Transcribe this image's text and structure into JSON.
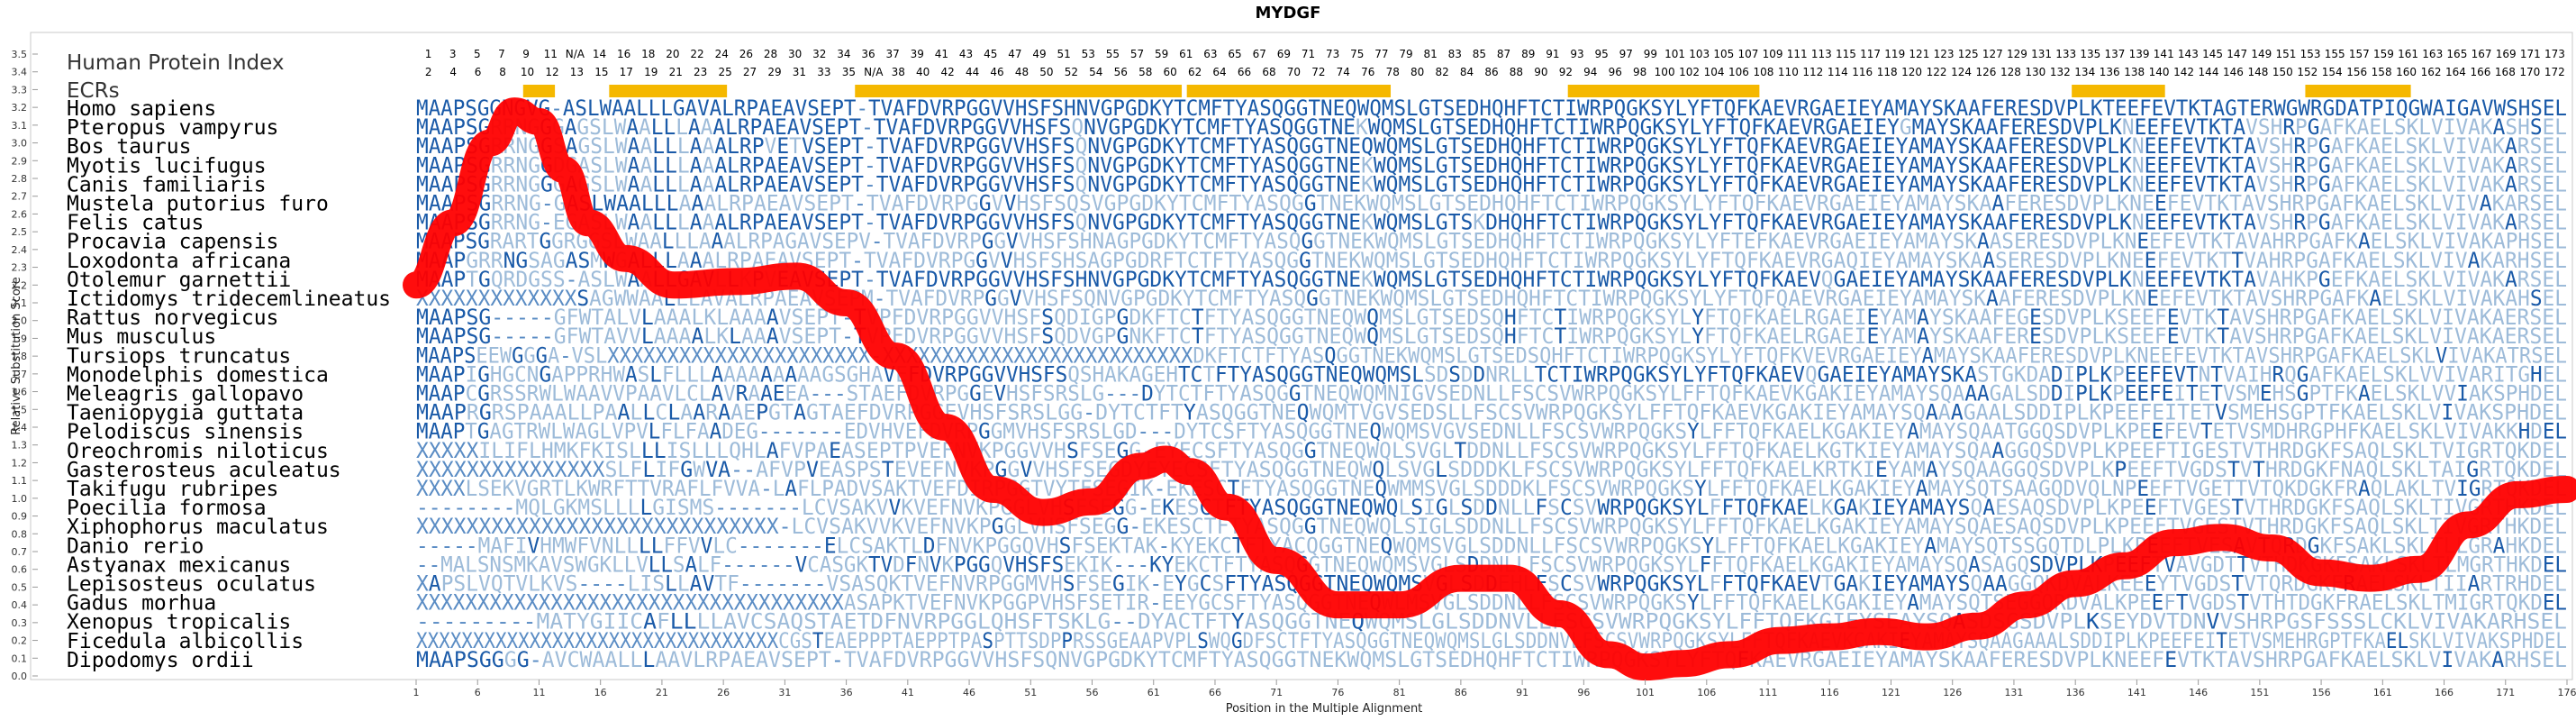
{
  "chart_data": {
    "type": "line",
    "title": "MYDGF",
    "xlabel": "Position in the Multiple Alignment",
    "ylabel": "Relative Substitution Score",
    "ylim": [
      0.0,
      3.5
    ],
    "yticks": [
      "0.0",
      "0.1",
      "0.2",
      "0.3",
      "0.4",
      "0.5",
      "0.6",
      "0.7",
      "0.8",
      "0.9",
      "1.0",
      "1.1",
      "1.2",
      "1.3",
      "1.4",
      "1.5",
      "1.6",
      "1.7",
      "1.8",
      "1.9",
      "2.0",
      "2.1",
      "2.2",
      "2.3",
      "2.4",
      "2.5",
      "2.6",
      "2.7",
      "2.8",
      "2.9",
      "3.0",
      "3.1",
      "3.2",
      "3.3",
      "3.4",
      "3.5"
    ],
    "xlim": [
      1,
      176
    ],
    "xticks": [
      "1",
      "6",
      "11",
      "16",
      "21",
      "26",
      "31",
      "36",
      "41",
      "46",
      "51",
      "56",
      "61",
      "66",
      "71",
      "76",
      "81",
      "86",
      "91",
      "96",
      "101",
      "106",
      "111",
      "116",
      "121",
      "126",
      "131",
      "136",
      "141",
      "146",
      "151",
      "156",
      "161",
      "166",
      "171",
      "176"
    ],
    "human_protein_index_label": "Human Protein Index",
    "ecrs_label": "ECRs",
    "protein_index_row1": [
      "1",
      "3",
      "5",
      "7",
      "9",
      "11",
      "N/A",
      "14",
      "16",
      "18",
      "20",
      "22",
      "24",
      "26",
      "28",
      "30",
      "32",
      "34",
      "36",
      "37",
      "39",
      "41",
      "43",
      "45",
      "47",
      "49",
      "51",
      "53",
      "55",
      "57",
      "59",
      "61",
      "63",
      "65",
      "67",
      "69",
      "71",
      "73",
      "75",
      "77",
      "79",
      "81",
      "83",
      "85",
      "87",
      "89",
      "91",
      "93",
      "95",
      "97",
      "99",
      "101",
      "103",
      "105",
      "107",
      "109",
      "111",
      "113",
      "115",
      "117",
      "119",
      "121",
      "123",
      "125",
      "127",
      "129",
      "131",
      "133",
      "135",
      "137",
      "139",
      "141",
      "143",
      "145",
      "147",
      "149",
      "151",
      "153",
      "155",
      "157",
      "159",
      "161",
      "163",
      "165",
      "167",
      "169",
      "171",
      "173"
    ],
    "protein_index_row2": [
      "2",
      "4",
      "6",
      "8",
      "10",
      "12",
      "13",
      "15",
      "17",
      "19",
      "21",
      "23",
      "25",
      "27",
      "29",
      "31",
      "33",
      "35",
      "N/A",
      "38",
      "40",
      "42",
      "44",
      "46",
      "48",
      "50",
      "52",
      "54",
      "56",
      "58",
      "60",
      "62",
      "64",
      "66",
      "68",
      "70",
      "72",
      "74",
      "76",
      "78",
      "80",
      "82",
      "84",
      "86",
      "88",
      "90",
      "92",
      "94",
      "96",
      "98",
      "100",
      "102",
      "104",
      "106",
      "108",
      "110",
      "112",
      "114",
      "116",
      "118",
      "120",
      "122",
      "124",
      "126",
      "128",
      "130",
      "132",
      "134",
      "136",
      "138",
      "140",
      "142",
      "144",
      "146",
      "148",
      "150",
      "152",
      "154",
      "156",
      "158",
      "160",
      "162",
      "164",
      "166",
      "168",
      "170",
      "172"
    ],
    "ecr_regions": [
      [
        10,
        12
      ],
      [
        17,
        26
      ],
      [
        37,
        63
      ],
      [
        64,
        80
      ],
      [
        95,
        110
      ],
      [
        136,
        143
      ],
      [
        155,
        163
      ]
    ],
    "series": [
      {
        "points": [
          [
            1,
            2.2
          ],
          [
            4,
            2.55
          ],
          [
            7,
            3.0
          ],
          [
            9,
            3.18
          ],
          [
            11,
            3.12
          ],
          [
            13,
            2.85
          ],
          [
            15,
            2.55
          ],
          [
            18,
            2.35
          ],
          [
            22,
            2.2
          ],
          [
            27,
            2.22
          ],
          [
            32,
            2.25
          ],
          [
            36,
            2.1
          ],
          [
            40,
            1.8
          ],
          [
            44,
            1.4
          ],
          [
            48,
            1.05
          ],
          [
            52,
            0.92
          ],
          [
            56,
            0.98
          ],
          [
            60,
            1.18
          ],
          [
            62,
            1.22
          ],
          [
            64,
            1.15
          ],
          [
            67,
            0.95
          ],
          [
            71,
            0.65
          ],
          [
            76,
            0.4
          ],
          [
            81,
            0.4
          ],
          [
            86,
            0.55
          ],
          [
            90,
            0.55
          ],
          [
            94,
            0.35
          ],
          [
            98,
            0.12
          ],
          [
            101,
            0.05
          ],
          [
            104,
            0.07
          ],
          [
            108,
            0.12
          ],
          [
            112,
            0.2
          ],
          [
            116,
            0.22
          ],
          [
            120,
            0.25
          ],
          [
            124,
            0.22
          ],
          [
            128,
            0.28
          ],
          [
            132,
            0.4
          ],
          [
            136,
            0.52
          ],
          [
            140,
            0.62
          ],
          [
            144,
            0.75
          ],
          [
            148,
            0.78
          ],
          [
            152,
            0.72
          ],
          [
            156,
            0.58
          ],
          [
            160,
            0.55
          ],
          [
            164,
            0.6
          ],
          [
            168,
            0.85
          ],
          [
            172,
            1.02
          ],
          [
            176,
            1.05
          ]
        ]
      }
    ],
    "color_line": "#ff0000",
    "color_ecr": "#f5b800",
    "color_seq_conserved": "#1a5aa8",
    "color_seq_mid": "#5a8cc4",
    "color_seq_low": "#9dbbd9",
    "alignment": [
      {
        "species": "Homo sapiens",
        "seq": "MAAPSGGNGVG-ASLWAALLLGAVALRPAEAVSEPT-TVAFDVRPGGVVHSFSHNVGPGDKYTCMFTYASQGGTNEQWQMSLGTSEDHQHFTCTIWRPQGKSYLYFTQFKAEVRGAEIEYAMAYSKAAFERESDVPLKTEEFEVTKTAGTERWGWRGDATPIQGWAIGAVWSHSEL"
      },
      {
        "species": "Pteropus vampyrus",
        "seq": "MAAPSGRRNGGGAGSLWAALLLAAALRPAEAVSEPT-TVAFDVRPGGVVHSFSQNVGPGDKYTCMFTYASQGGTNEKWQMSLGTSEDHQHFTCTIWRPQGKSYLYFTQFKAEVRGAEIEYGMAYSKAAFERESDVPLKNEEFEVTKTAVSHRPGAFKAELSKLVIVAKASHSEL"
      },
      {
        "species": "Bos taurus",
        "seq": "MAAPSGRRNGGSAGSLWAALLLAAALRPVETVSEPT-TVAFDVRPGGVVHSFSQNVGPGDKYTCMFTYASQGGTNEQWQMSLGTSEDHQHFTCTIWRPQGKSYLYFTQFKAEVRGAEIEYAMAYSKAAFERESDVPLKNEEFEVTKTAVSHRPGAFKAELSKLVIVAKARSEL"
      },
      {
        "species": "Myotis lucifugus",
        "seq": "MAAPSGRRNGGDGASLWAALLLAAALRPAEAVSEPT-TVAFDVRPGGVVHSFSQNVGPGDKYTCMFTYASQGGTNEKWQMSLGTSEDHQHFTCTIWRPQGKSYLYFTQFKAEVRGAEIEYAMAYSKAAFERESDVPLKNEEFEVTKTAVSHRPGAFKAELSKLVIVAKARSEL"
      },
      {
        "species": "Canis familiaris",
        "seq": "MAAPSGRRNGGGAGSLWAALLLAAALRPAEAVSEPT-TVAFDVRPGGVVHSFSQNVGPGDKYTCMFTYASQGGTNEKWQMSLGTSEDHQHFTCTIWRPQGKSYLYFTQFKAEVRGAEIEYAMAYSKAAFERESDVPLKNEEFEVTKTAVSHRPGAFKAELSKLVIVAKARSEL"
      },
      {
        "species": "Mustela putorius furo",
        "seq": "MAAPSGRRNG-GASLWAALLLAAALRPAEAVSEPT-TVAFDVRPGGVVHSFSQSVGPGDKYTCMFTYASQGGTNEKWQMSLGTSEDHQHFTCTIWRPQGKSYLYFTQFKAEVRGAEIEYAMAYSKAAFERESDVPLKNEEFEVTKTAVSHRPGAFKAELSKLVIVAKARSEL"
      },
      {
        "species": "Felis catus",
        "seq": "MAAPSGRRNG-EGASLWAALLLAAALRPAEAVSEPT-TVAFDVRPGGVVHSFSQNVGPGDKYTCMFTYASQGGTNEKWQMSLGTSKDHQHFTCTIWRPQGKSYLYFTQFKAEVRGAEIEYAMAYSKAAFERESDVPLKNEEFEVTKTAVSHRPGAFKAELSKLVIVAKARSEL"
      },
      {
        "species": "Procavia capensis",
        "seq": "MAAPSGRARTGGRGGSLWAALLLAAALRPAGAVSEPV-TVAFDVRPGGVVHSFSHNAGPGDKYTCMFTYASQGGTNEKWQMSLGTSEDHQHFTCTIWRPQGKSYLYFTEFKAEVRGAEIEYAMAYSKAASERESDVPLKNEEFEVTKTAVAHRPGAFKAELSKLVIVAKAPHSEL"
      },
      {
        "species": "Loxodonta africana",
        "seq": "MAAPGRRNGSAGASMWGALLLAAALRPAEAVSEPT-TVAFDVRPGGVVHSFSHSAGPGDRFTCTFTYASQGGTNEKWQMSLGTSEDHQHFTCTIWRPQGKSYLYFTQFKAEVRGAQIEYAMAYSKAASERESDVPLKNEEFEVTKTTVAHRPGAFKAELSKLVIVAKARHSEL"
      },
      {
        "species": "Otolemur garnettii",
        "seq": "MAAPTGQRDGSS-ASLWAALLGAVLLKPVEAVSEPT-TVAFDVRPGGVVHSFSHNVGPGDKYTCMFTYASQGGTNEKWQMSLGTSEDHQHFTCTIWRPQGKSYLYFTQFKAEVQGAEIEYAMAYSKAAFERESDVPLKNEEFEVTKTAVAHKPGEFKAELSKLVIVAKARSEL"
      },
      {
        "species": "Ictidomys tridecemlineatus",
        "seq": "XXXXXXXXXXXXXSAGWWAALLLAVALRPAEAVSEPM-TVAFDVRPGGVVHSFSQNVGPGDKYTCMFTYASQGGTNEKWQMSLGTSEDHQHFTCTIWRPQGKSYLYFTQFQAEVRGAEIEYAMAYSKAAFERESDVPLKNEEFEVTKTAVSHRPGAFKAELSKLVIVAKAHSEL"
      },
      {
        "species": "Rattus norvegicus",
        "seq": "MAAPSG-----GFWTALVLAAALKLAAAAVSEPT-TVPFDVRPGGVVHSFSQDIGPGDKFTCTFTYASQGGTNEQWQMSLGTSEDSQHFTCTIWRPQGKSYLYFTQFKAELRGAEIEYAMAYSKAAFEGESDVPLKSEEFEVTKTAVSHRPGAFKAELSKLVIVAKAERSEL"
      },
      {
        "species": "Mus musculus",
        "seq": "MAAPSG-----GFWTAVVLAAAALKLAAAVSEPT-TVPFDVRPGGVVHSFSQDVGPGNKFTCTFTYASQGGTNEQWQMSLGTSEDSQHFTCTIWRPQGKSYLYFTQFKAELRGAEIEYAMAYSKAAFERESDVPLKSEEFEVTKTAVSHRPGAFKAELSKLVIVAKAERSEL"
      },
      {
        "species": "Tursiops truncatus",
        "seq": "MAAPSEEWGGGA-VSLXXXXXXXXXXXXXXXXXXXXXX-XXXXXXXXXXXXXXXXXXXXXXXXXXDKFTCTFTYASQGGTNEKWQMSLGTSEDSQHFTCTIWRPQGKSYLYFTQFKVEVRGAEIEYAMAYSKAAFERESDVPLKNEEFEVTKTAVSHRPGAFKAELSKLVIVAKATRSEL"
      },
      {
        "species": "Monodelphis domestica",
        "seq": "MAAPIGHGCNGAPPRHWASLFLLLAAAAAAAAAGSGHAVEFDVRPGGVVHSFSQSHAKAGEHTCTFTYASQGGTNEQWQMSLSDSDDNRLLTCTIWRPQGKSYLYFTQFKAEVQGAEIEYAMAYSKASTGKDADIPLKPEEFEVTNTVAIHRQGAFKAELSKLVVIVARITGHEL"
      },
      {
        "species": "Meleagris gallopavo",
        "seq": "MAAPCGRSSRWLWAAVVPAAVLCLAVRAAEEA---STAEFDVRPGGEVHSFSRSLG---DYTCTFTYASQGGTNEQWQMNIGVSEDNLLFSCSVWRPQGKSYLFFTQFKAEVKGAKIEYAMAYSQAAAGALSDDIPLKPEEFEITETVSMEHSGPTFKAELSKLVVIAKSPHDEL"
      },
      {
        "species": "Taeniopygia guttata",
        "seq": "MAAPRGRSPAAALLPAALLCLAARAAEPGTAGTAEFDVRPGGEVHSFSRSLGG-DYTCTFTYASQGGTNEQWQMTVGVSEDSLLFSCSVWRPQGKSYLFFTQFKAEVKGAKIEYAMAYSQAAAGAALSDDIPLKPEEFEITETVSMEHSGPTFKAELSKLVIVAKSPHDEL"
      },
      {
        "species": "Pelodiscus sinensis",
        "seq": "MAAPTGAGTRWLWAGLVPVLFLFAADEG-------EDVHVEFDVRPGGMVHSFSRSLGD---DYTCSFTYASQGGTNEQWQMSVGVSEDNLLFSCSVWRPQGKSYLFFTQFKAELKGAKIEYAMAYSQAATGGQSDVPLKPEEFEVTETVSMDHRGPHFKAELSKLVIVAKKHDEL"
      },
      {
        "species": "Oreochromis niloticus",
        "seq": "XXXXXILIFLHMKFKISLLLISLLLQHLAFVPAEASEPTPVEFNVKPGGVVHSFSEGG-EYECSFTYASQGGTNEQWQLSVGLTDDNLLFSCSVWRPQGKSYLFFTQFKAELKGTKIEYAMAYSQAAGGQSDVPLKPEEFTIGESTVTHRDGKFSAQLSKLTVIGRTQKDEL"
      },
      {
        "species": "Gasterosteus aculeatus",
        "seq": "XXXXXXXXXXXXXXXSLFLIFGWVA--AFVPVEASPSTEVEFNVKPGGVVHSFSEGDYEYECSFTYASQGGTNEQWQLSVGLSDDDKLFSCSVWRPQGKSYLFFTQFKAELKRTKIEYAMAYSQAAGGQSDVPLKPEEFTVGDSTVTHRDGKFNAQLSKLTAIGRTQKDEL"
      },
      {
        "species": "Takifugu rubripes",
        "seq": "XXXXLSEKVGRTLKWRFTTVRAFLFVVA-LAFLPADVSAKTVEFDIRPGGTVYTFSEGIK-EKESCTFTYASQGGTNEQWMMSVGLSDDDKLFSCSVWRPQGKSYLFFTQFKAELKGAKIEYAMAYSQTSAAGQDVQLNPEEFTVGETTVTQKDGKFRAQLAKLTVIGRTQKDEL"
      },
      {
        "species": "Poecilia formosa",
        "seq": "--------MQLGKMSLLLLGISMS-------LCVSAKVVKVEFNVKPGGLVHSFSEGG-EKESCTFTYASQGGTNEQWQLSIGLSDDNLLFSCSVWRPQGKSYLFFTQFKAELKGAKIEYAMAYSQAESAQSDVPLKPEEFTVGESTVTHRDGKFSAQLSKLTIVGRTHKDEL"
      },
      {
        "species": "Xiphophorus maculatus",
        "seq": "XXXXXXXXXXXXXXXXXXXXXXXXXXXXX-LCVSAKVVKVEFNVKPGGLVHSFSEGG-EKESCTFTYASQGGTNEQWQLSIGLSDDNLLFSCSVWRPQGKSYLFFTQFKAELKGAKIEYAMAYSQAESAQSDVPLKPEEFTVGESTVTHRDGKFSAQLSKLTIVGRTHKDEL"
      },
      {
        "species": "Danio rerio",
        "seq": "-----MAFIVHMWFVNLLLLFFVVLC-------ELCSAKTLDFNVKPGGQVHSFSEKTAK-KYEKCTFTYACQGGTNEQWQMSVGLSDDNLLFSCSVWRPQGKSYLFFTQFKAELKGAKIEYAMAYSQTSSGQTDLPLKPEEFTVESAVTQRDGKFSAKLSKLTLLGRAHKDEL"
      },
      {
        "species": "Astyanax mexicanus",
        "seq": "--MALSNSMKAVSWGKLLVLLSALF------VCASGKTVDFNVKPGGQVHSFSEKIK---KYEKCTFTYASQGGTNEQWQMSVGLSDDNLLFSCSVWRPQGKSYLFFTQFKAELKGAKIEYAMAYSQASAGQSDVPLKPEEFTVAVGDTTVTHDKGKFSAKLSKLTLMGRTHKDEL"
      },
      {
        "species": "Lepisosteus oculatus",
        "seq": "XAPSLVQTVLKVS----LISLLAVTF-------VSASQKTVEFNVRPGGMVHSFSEGIK-EYGCSFTYASQGGTNEQWQMSVGLSDDEHLFSCSVWRPQGKSYLFFTQFKAEVTGAKIEYAMAYSQAAGGQKDVALKEEEYTVGDSTVTQRDGKFRAELSKLTIIARTRHDEL"
      },
      {
        "species": "Gadus morhua",
        "seq": "XXXXXXXXXXXXXXXXXXXXXXXXXXXXXXXXXXXASAPKTVEFNVKPGGPVHSFSETIR-EEYGCSFTYASQGGTNEQWLMSVGLSDDNLLFSCSVWRPQGKSYLFFTQFKAELKGAKIEYAMAYSQTSEGGQRDVALKPEEFTVGDSTVTHTDGKFRAELSKLTMIGRTQKDEL"
      },
      {
        "species": "Xenopus tropicalis",
        "seq": "---------MATYGIICAFLLLLAVCSAQSTAETDFNVRPGGLQHSFTSKLG--DYACTFTYASQGGTNEQWQMSLGLSDDNVLLFSCSVWRPQGKSYLFFTQFKGIEYSEAYSQASDSGSDVPLKSEYDVTDNVVSHRPGSFSSSLCKLVIVAKARHSEL"
      },
      {
        "species": "Ficedula albicollis",
        "seq": "XXXXXXXXXXXXXXXXXXXXXXXXXXXXXXXXCGSTEAEPPPTAEPPTPASPTTSDPPRSSGEAAPVPLSWQGDFSCTFTYASQGGTNEQWQMSLGLSDDNVLFSCSVWRPQGKSYLFFTQFKAEVKGAKIEYAMAYSQAAGAAALSDDIPLKPEEFEITETVSMEHRGPTFKAELSKLVIVAKSPHDEL"
      },
      {
        "species": "Dipodomys ordii",
        "seq": "MAAPSGGGG-AVCWAALLLAAVLRPAEAVSEPT-TVAFDVRPGGVVHSFSQNVGPGDKYTCMFTYASQGGTNEKWQMSLGTSEDHQHFTCTIWRPQGKSYLYFTQFKAEVRGAEIEYAMAYSKAAFERESDVPLKNEEFEVTKTAVSHRPGAFKAELSKLVIVAKARHSEL"
      }
    ]
  }
}
